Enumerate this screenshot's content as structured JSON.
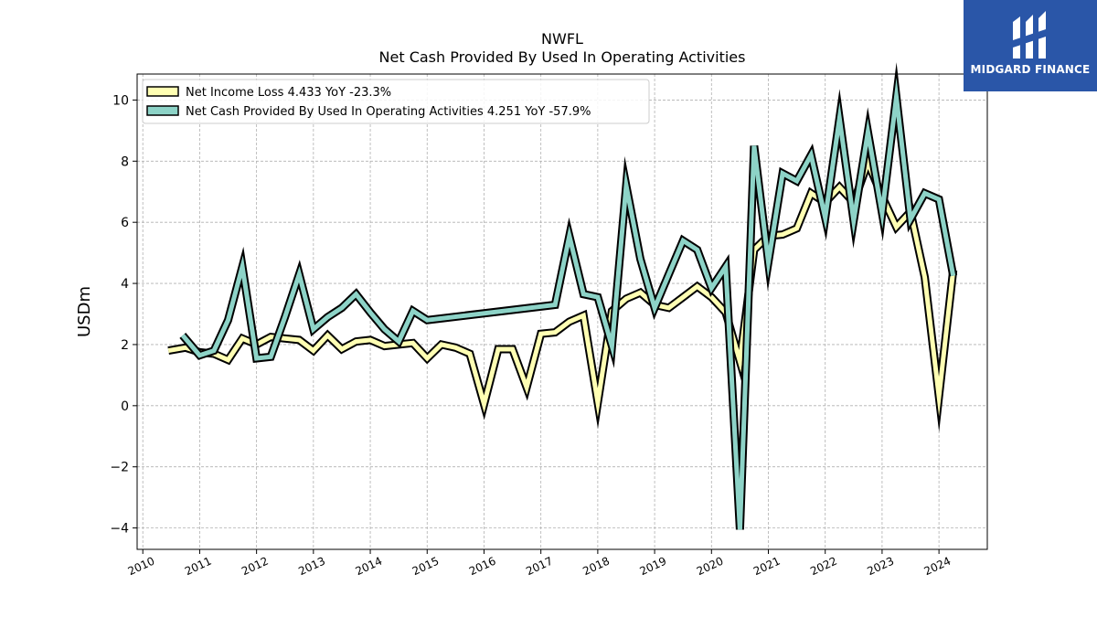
{
  "chart_data": {
    "type": "line",
    "title": "NWFL",
    "subtitle": "Net Cash Provided By Used In Operating Activities",
    "ylabel": "USDm",
    "xlabel": "",
    "xlim": [
      2009.9,
      2024.85
    ],
    "ylim": [
      -4.7,
      10.85
    ],
    "yticks": [
      -4,
      -2,
      0,
      2,
      4,
      6,
      8,
      10
    ],
    "xticks": [
      2010,
      2011,
      2012,
      2013,
      2014,
      2015,
      2016,
      2017,
      2018,
      2019,
      2020,
      2021,
      2022,
      2023,
      2024
    ],
    "grid": true,
    "legend_position": "top-left",
    "series": [
      {
        "name": "Net Income Loss",
        "legend": "Net Income Loss  4.433 YoY -23.3%",
        "color": "#ffffb3",
        "x": [
          2010.45,
          2010.75,
          2011.0,
          2011.25,
          2011.5,
          2011.75,
          2012.0,
          2012.25,
          2012.5,
          2012.75,
          2013.0,
          2013.25,
          2013.5,
          2013.75,
          2014.0,
          2014.25,
          2014.5,
          2014.75,
          2015.0,
          2015.25,
          2015.5,
          2015.75,
          2016.0,
          2016.25,
          2016.5,
          2016.75,
          2017.0,
          2017.25,
          2017.5,
          2017.75,
          2018.0,
          2018.25,
          2018.5,
          2018.75,
          2019.0,
          2019.25,
          2019.5,
          2019.75,
          2020.0,
          2020.25,
          2020.5,
          2020.75,
          2021.0,
          2021.25,
          2021.5,
          2021.75,
          2022.0,
          2022.25,
          2022.5,
          2022.75,
          2023.0,
          2023.25,
          2023.5,
          2023.75,
          2024.0,
          2024.25
        ],
        "values": [
          1.8,
          1.9,
          1.75,
          1.7,
          1.5,
          2.2,
          2.0,
          2.25,
          2.2,
          2.15,
          1.8,
          2.3,
          1.85,
          2.1,
          2.15,
          1.95,
          2.0,
          2.05,
          1.55,
          2.0,
          1.9,
          1.7,
          0.05,
          1.85,
          1.85,
          0.6,
          2.35,
          2.4,
          2.75,
          2.95,
          0.1,
          3.1,
          3.5,
          3.7,
          3.3,
          3.2,
          3.55,
          3.9,
          3.55,
          3.05,
          1.45,
          5.1,
          5.55,
          5.6,
          5.8,
          6.95,
          6.65,
          7.15,
          6.65,
          7.95,
          6.85,
          5.85,
          6.35,
          4.2,
          0.3,
          4.43
        ]
      },
      {
        "name": "Net Cash Provided By Used In Operating Activities",
        "legend": "Net Cash Provided By Used In Operating Activities  4.251 YoY -57.9%",
        "color": "#8dd3c7",
        "x": [
          2010.7,
          2011.0,
          2011.25,
          2011.5,
          2011.75,
          2012.0,
          2012.25,
          2012.5,
          2012.75,
          2013.0,
          2013.25,
          2013.5,
          2013.75,
          2014.0,
          2014.25,
          2014.5,
          2014.75,
          2015.0,
          2017.25,
          2017.5,
          2017.75,
          2018.0,
          2018.25,
          2018.5,
          2018.75,
          2019.0,
          2019.25,
          2019.5,
          2019.75,
          2020.0,
          2020.25,
          2020.5,
          2020.75,
          2021.0,
          2021.25,
          2021.5,
          2021.75,
          2022.0,
          2022.25,
          2022.5,
          2022.75,
          2023.0,
          2023.25,
          2023.5,
          2023.75,
          2024.0,
          2024.25
        ],
        "values": [
          2.3,
          1.65,
          1.8,
          2.8,
          4.55,
          1.55,
          1.6,
          2.9,
          4.3,
          2.5,
          2.9,
          3.2,
          3.65,
          3.05,
          2.5,
          2.1,
          3.1,
          2.8,
          3.3,
          5.55,
          3.65,
          3.55,
          1.95,
          7.2,
          4.8,
          3.2,
          4.3,
          5.4,
          5.1,
          3.85,
          4.55,
          -4.05,
          8.5,
          4.7,
          7.6,
          7.35,
          8.2,
          6.15,
          9.4,
          6.05,
          8.95,
          6.3,
          10.1,
          6.1,
          6.95,
          6.75,
          4.25
        ]
      }
    ]
  },
  "logo": {
    "text": "MIDGARD FINANCE",
    "icon": "midgard-logo-icon",
    "background": "#2a56a8"
  }
}
